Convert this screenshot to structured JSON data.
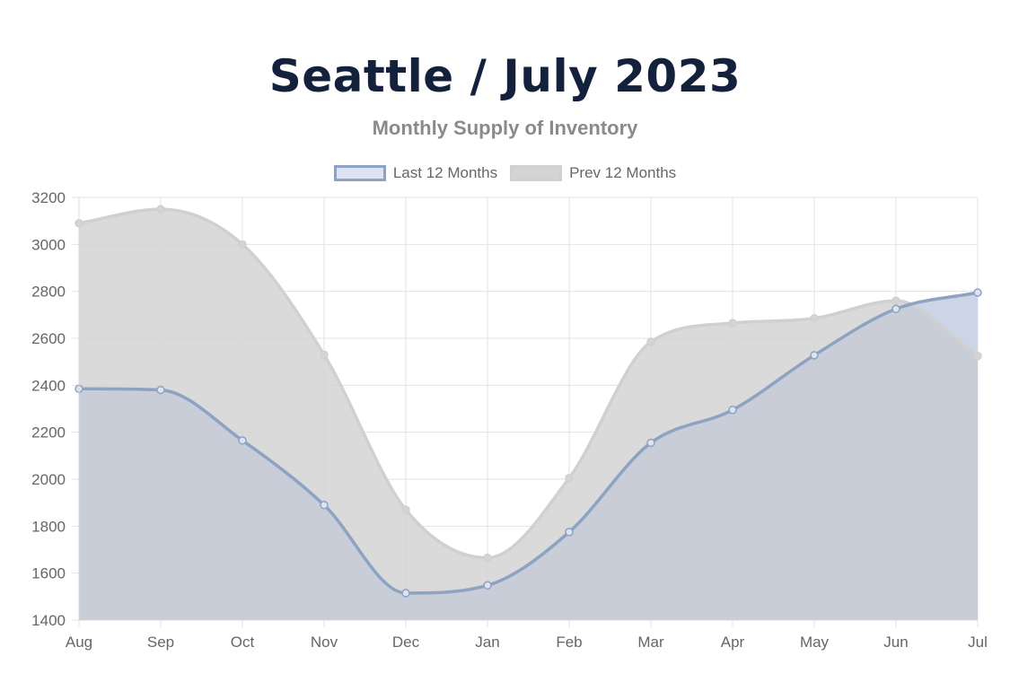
{
  "chart_data": {
    "type": "area",
    "title": "Seattle / July 2023",
    "subtitle": "Monthly Supply of Inventory",
    "categories": [
      "Aug",
      "Sep",
      "Oct",
      "Nov",
      "Dec",
      "Jan",
      "Feb",
      "Mar",
      "Apr",
      "May",
      "Jun",
      "Jul"
    ],
    "ylim": [
      1400,
      3200
    ],
    "yticks": [
      1400,
      1600,
      1800,
      2000,
      2200,
      2400,
      2600,
      2800,
      3000,
      3200
    ],
    "grid": true,
    "legend_position": "top",
    "series": [
      {
        "name": "Last 12 Months",
        "values": [
          2385,
          2380,
          2165,
          1890,
          1515,
          1548,
          1775,
          2155,
          2295,
          2528,
          2725,
          2795
        ],
        "line_color": "#8ea2c2",
        "fill_color": "#dde3f0"
      },
      {
        "name": "Prev 12 Months",
        "values": [
          3090,
          3150,
          3000,
          2530,
          1870,
          1665,
          2005,
          2585,
          2665,
          2685,
          2760,
          2525
        ],
        "line_color": "#d0d0d0",
        "fill_color": "#d4d4d4"
      }
    ]
  }
}
